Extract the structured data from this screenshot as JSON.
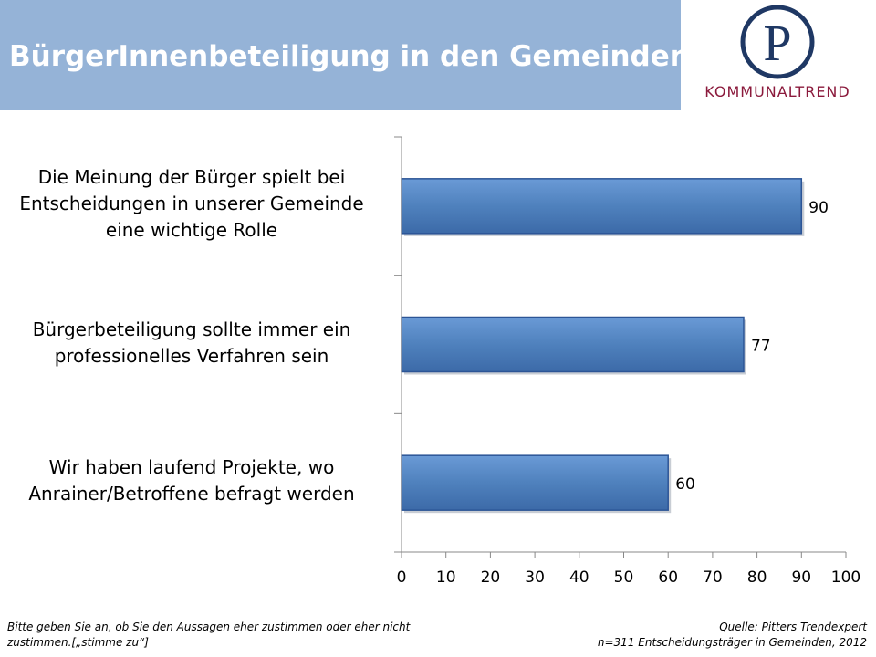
{
  "header": {
    "title": "BürgerInnenbeteiligung in den Gemeinden",
    "background_color": "#95b3d7"
  },
  "logo": {
    "letter": "P",
    "text": "KOMMUNALTREND",
    "color": "#1f3864",
    "accent_color": "#8b1a3c"
  },
  "chart_data": {
    "type": "bar",
    "orientation": "horizontal",
    "categories": [
      [
        "Die Meinung der Bürger spielt bei",
        "Entscheidungen in unserer Gemeinde",
        "eine wichtige Rolle"
      ],
      [
        "Bürgerbeteiligung sollte immer ein",
        "professionelles Verfahren sein"
      ],
      [
        "Wir haben laufend Projekte, wo",
        "Anrainer/Betroffene befragt werden"
      ]
    ],
    "values": [
      90,
      77,
      60
    ],
    "data_labels": [
      "90",
      "77",
      "60"
    ],
    "xlim": [
      0,
      100
    ],
    "x_ticks": [
      "0",
      "10",
      "20",
      "30",
      "40",
      "50",
      "60",
      "70",
      "80",
      "90",
      "100"
    ],
    "bar_color": "#4f81bd",
    "bar_edge_color": "#2c5596",
    "grid": false,
    "legend": "none"
  },
  "footnotes": {
    "left": [
      "Bitte geben Sie an, ob Sie den Aussagen eher zustimmen oder eher nicht",
      "zustimmen.[„stimme zu“]"
    ],
    "right": [
      "Quelle: Pitters Trendexpert",
      "n=311 Entscheidungsträger in  Gemeinden, 2012"
    ]
  }
}
